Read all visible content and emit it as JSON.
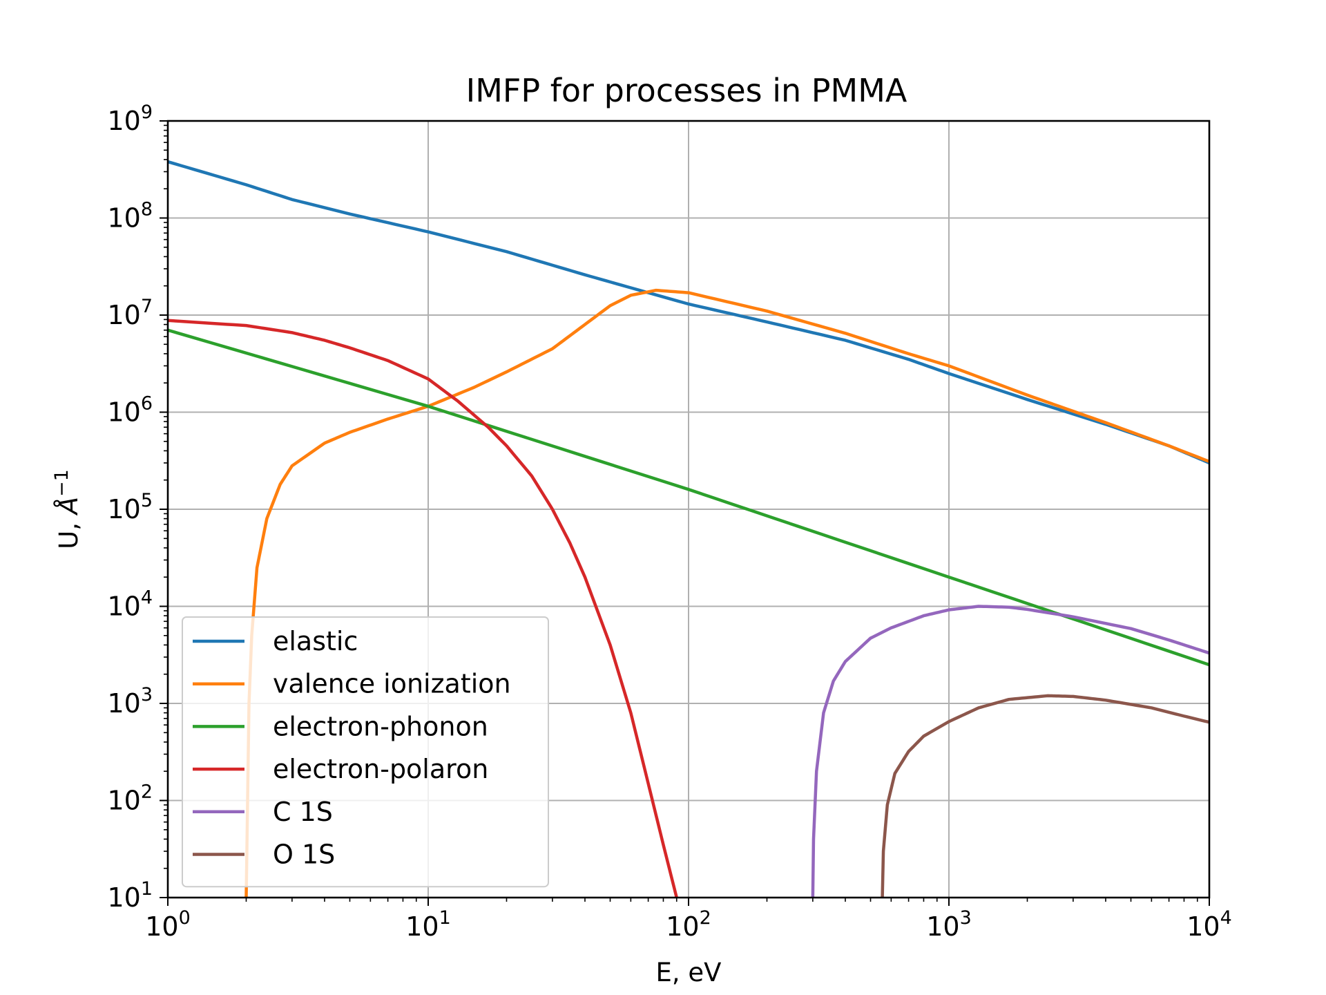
{
  "chart_data": {
    "type": "line",
    "title": "IMFP for processes in PMMA",
    "xlabel": "E, eV",
    "ylabel_main": "U, ",
    "ylabel_unit": "Å",
    "ylabel_sup": "−1",
    "xscale": "log",
    "yscale": "log",
    "xlim": [
      1,
      10000
    ],
    "ylim": [
      10,
      1000000000
    ],
    "grid": true,
    "legend_position": "lower-left",
    "x_ticks": [
      {
        "base": "10",
        "exp": "0"
      },
      {
        "base": "10",
        "exp": "1"
      },
      {
        "base": "10",
        "exp": "2"
      },
      {
        "base": "10",
        "exp": "3"
      },
      {
        "base": "10",
        "exp": "4"
      }
    ],
    "y_ticks": [
      {
        "base": "10",
        "exp": "1"
      },
      {
        "base": "10",
        "exp": "2"
      },
      {
        "base": "10",
        "exp": "3"
      },
      {
        "base": "10",
        "exp": "4"
      },
      {
        "base": "10",
        "exp": "5"
      },
      {
        "base": "10",
        "exp": "6"
      },
      {
        "base": "10",
        "exp": "7"
      },
      {
        "base": "10",
        "exp": "8"
      },
      {
        "base": "10",
        "exp": "9"
      }
    ],
    "series": [
      {
        "name": "elastic",
        "color": "#1f77b4",
        "points": [
          [
            1,
            380000000
          ],
          [
            2,
            220000000
          ],
          [
            3,
            155000000
          ],
          [
            5,
            110000000
          ],
          [
            10,
            72000000
          ],
          [
            20,
            45000000
          ],
          [
            40,
            26000000
          ],
          [
            70,
            17000000
          ],
          [
            100,
            13000000
          ],
          [
            200,
            8500000
          ],
          [
            400,
            5500000
          ],
          [
            700,
            3500000
          ],
          [
            1000,
            2500000
          ],
          [
            2000,
            1350000
          ],
          [
            4000,
            750000
          ],
          [
            7000,
            450000
          ],
          [
            10000,
            300000
          ]
        ]
      },
      {
        "name": "valence ionization",
        "color": "#ff7f0e",
        "points": [
          [
            2.0,
            10
          ],
          [
            2.05,
            1000
          ],
          [
            2.1,
            5000
          ],
          [
            2.2,
            25000
          ],
          [
            2.4,
            80000
          ],
          [
            2.7,
            180000
          ],
          [
            3,
            280000
          ],
          [
            4,
            480000
          ],
          [
            5,
            620000
          ],
          [
            7,
            850000
          ],
          [
            10,
            1150000
          ],
          [
            15,
            1800000
          ],
          [
            20,
            2600000
          ],
          [
            30,
            4500000
          ],
          [
            40,
            8000000
          ],
          [
            50,
            12500000
          ],
          [
            60,
            16000000
          ],
          [
            75,
            18000000
          ],
          [
            100,
            17000000
          ],
          [
            200,
            11000000
          ],
          [
            400,
            6500000
          ],
          [
            700,
            4000000
          ],
          [
            1000,
            3000000
          ],
          [
            2000,
            1500000
          ],
          [
            4000,
            780000
          ],
          [
            7000,
            450000
          ],
          [
            10000,
            310000
          ]
        ]
      },
      {
        "name": "electron-phonon",
        "color": "#2ca02c",
        "points": [
          [
            1,
            7000000
          ],
          [
            10,
            1150000
          ],
          [
            100,
            160000
          ],
          [
            1000,
            20000
          ],
          [
            10000,
            2500
          ]
        ]
      },
      {
        "name": "electron-polaron",
        "color": "#d62728",
        "points": [
          [
            1,
            8800000
          ],
          [
            2,
            7800000
          ],
          [
            3,
            6600000
          ],
          [
            4,
            5500000
          ],
          [
            5,
            4600000
          ],
          [
            7,
            3400000
          ],
          [
            10,
            2200000
          ],
          [
            13,
            1300000
          ],
          [
            17,
            700000
          ],
          [
            20,
            450000
          ],
          [
            25,
            220000
          ],
          [
            30,
            100000
          ],
          [
            35,
            45000
          ],
          [
            40,
            20000
          ],
          [
            50,
            4000
          ],
          [
            60,
            800
          ],
          [
            70,
            150
          ],
          [
            80,
            35
          ],
          [
            90,
            10
          ]
        ]
      },
      {
        "name": "C 1S",
        "color": "#9467bd",
        "points": [
          [
            300,
            10
          ],
          [
            302,
            40
          ],
          [
            310,
            200
          ],
          [
            330,
            800
          ],
          [
            360,
            1700
          ],
          [
            400,
            2700
          ],
          [
            500,
            4700
          ],
          [
            600,
            6000
          ],
          [
            800,
            8000
          ],
          [
            1000,
            9200
          ],
          [
            1300,
            10000
          ],
          [
            1700,
            9800
          ],
          [
            2000,
            9300
          ],
          [
            3000,
            7800
          ],
          [
            5000,
            5900
          ],
          [
            7000,
            4500
          ],
          [
            10000,
            3300
          ]
        ]
      },
      {
        "name": "O 1S",
        "color": "#8c564b",
        "points": [
          [
            555,
            10
          ],
          [
            560,
            30
          ],
          [
            580,
            90
          ],
          [
            620,
            190
          ],
          [
            700,
            320
          ],
          [
            800,
            460
          ],
          [
            1000,
            650
          ],
          [
            1300,
            900
          ],
          [
            1700,
            1100
          ],
          [
            2400,
            1200
          ],
          [
            3000,
            1180
          ],
          [
            4000,
            1080
          ],
          [
            6000,
            900
          ],
          [
            8000,
            740
          ],
          [
            10000,
            640
          ]
        ]
      }
    ]
  }
}
